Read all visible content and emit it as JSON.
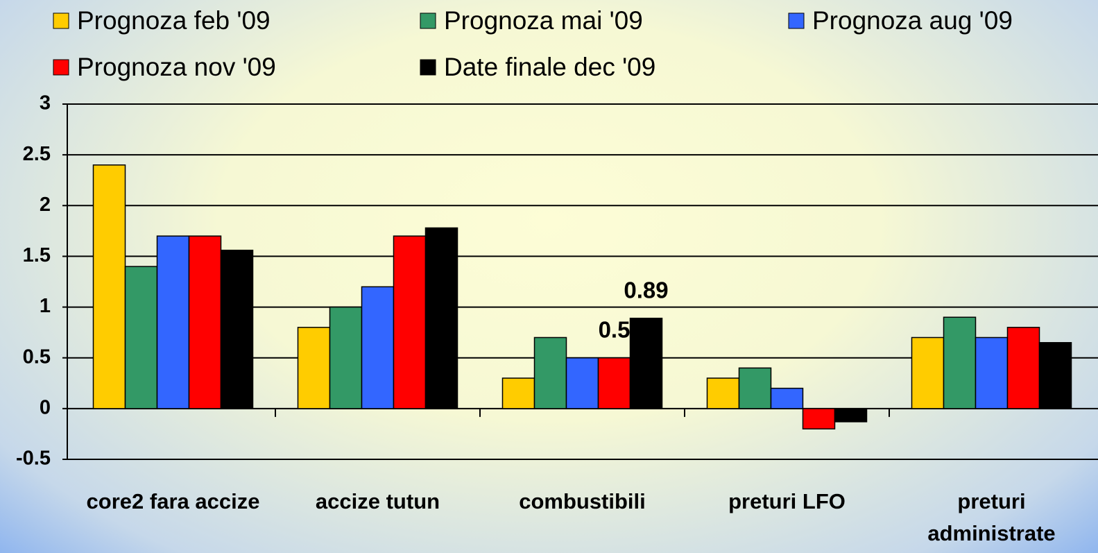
{
  "chart_data": {
    "type": "bar",
    "categories": [
      "core2 fara accize",
      "accize tutun",
      "combustibili",
      "preturi LFO",
      "preturi administrate"
    ],
    "series": [
      {
        "name": "Prognoza feb '09",
        "color": "#ffcc00",
        "values": [
          2.4,
          0.8,
          0.3,
          0.3,
          0.7
        ]
      },
      {
        "name": "Prognoza mai '09",
        "color": "#339966",
        "values": [
          1.4,
          1.0,
          0.7,
          0.4,
          0.9
        ]
      },
      {
        "name": "Prognoza aug '09",
        "color": "#3366ff",
        "values": [
          1.7,
          1.2,
          0.5,
          0.2,
          0.7
        ]
      },
      {
        "name": "Prognoza nov '09",
        "color": "#ff0000",
        "values": [
          1.7,
          1.7,
          0.5,
          -0.2,
          0.8
        ],
        "value_labels": [
          null,
          null,
          "0.5",
          null,
          null
        ]
      },
      {
        "name": "Date finale dec '09",
        "color": "#000000",
        "values": [
          1.56,
          1.78,
          0.89,
          -0.13,
          0.65
        ],
        "value_labels": [
          null,
          null,
          "0.89",
          null,
          null
        ]
      }
    ],
    "ylim": [
      -0.5,
      3
    ],
    "yticks": [
      -0.5,
      0,
      0.5,
      1,
      1.5,
      2,
      2.5,
      3
    ],
    "grid": true
  }
}
